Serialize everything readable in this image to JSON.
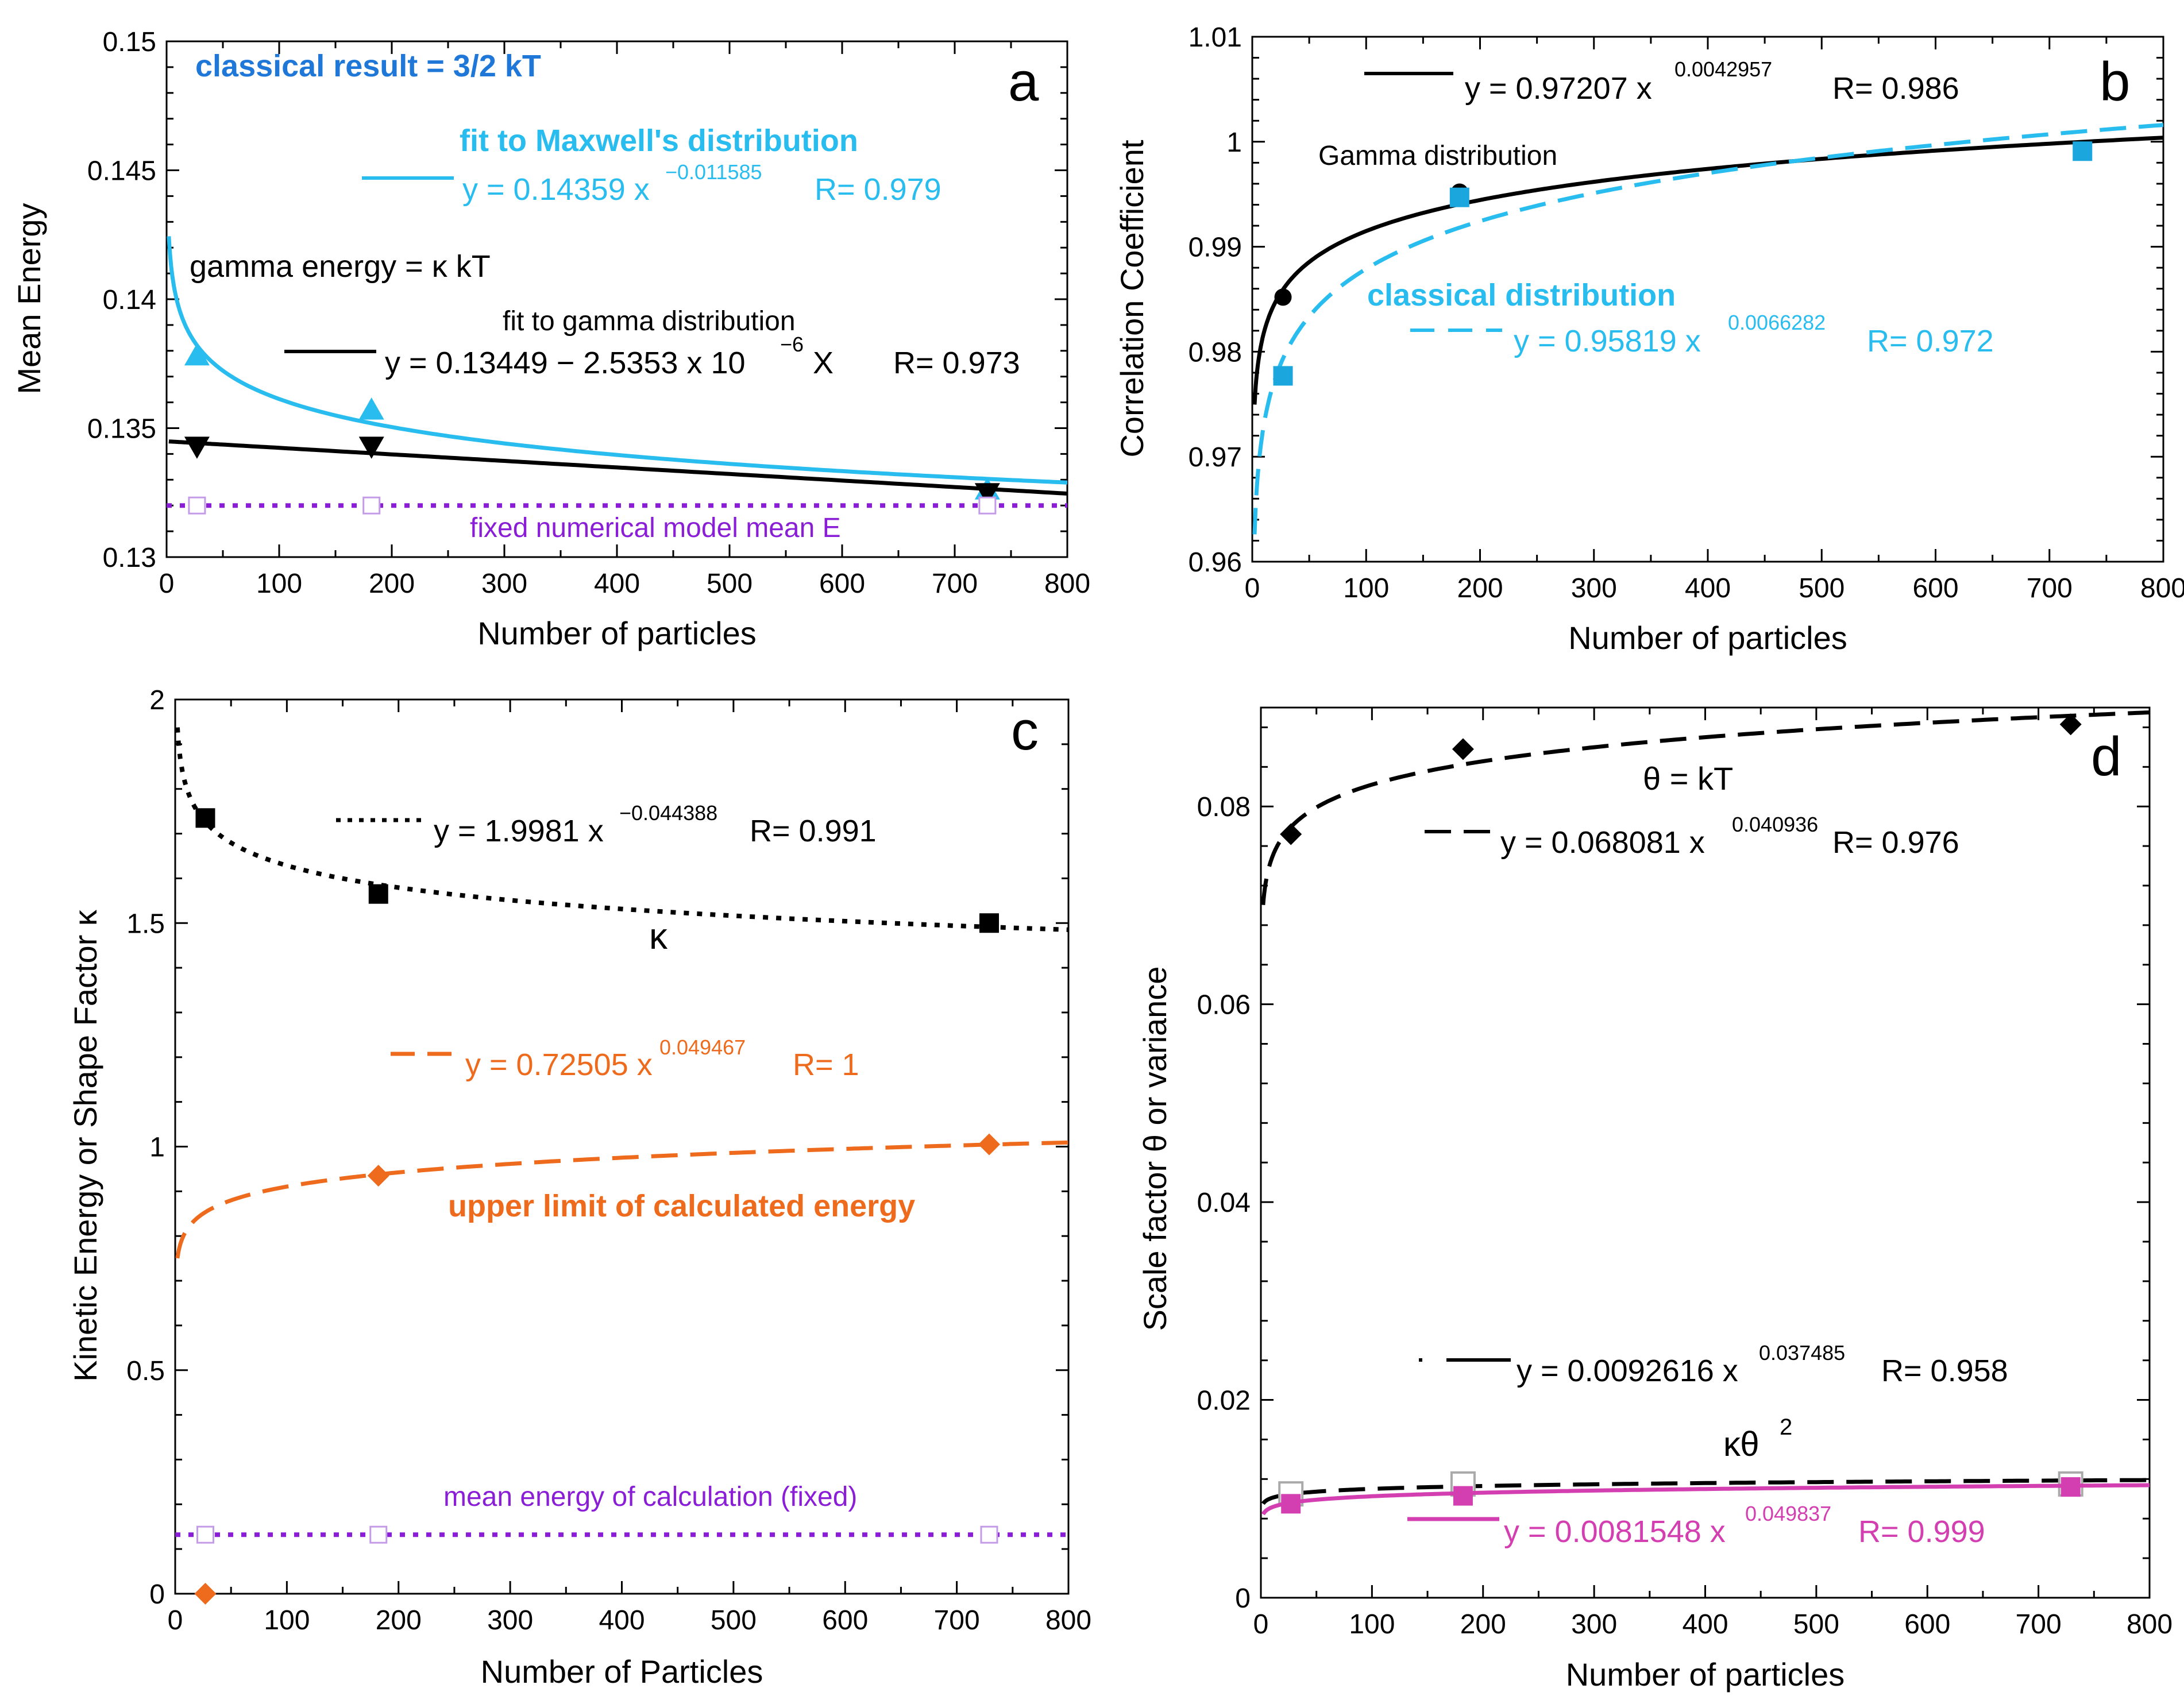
{
  "figure": "Four-panel figure of gamma-distribution fits versus number of particles",
  "colors": {
    "cyan": "#29bdef",
    "cyan_dark": "#1ba7dd",
    "classical_blue": "#1f78d8",
    "black": "#000000",
    "purple": "#8a1ed6",
    "purple_light": "#c49be6",
    "orange": "#ee6a1c",
    "magenta": "#d33fb0",
    "grey": "#aaaaaa"
  },
  "chart_data": [
    {
      "id": "a",
      "type": "scatter",
      "panel_label": "a",
      "xlabel": "Number of particles",
      "ylabel": "Mean Energy",
      "xlim": [
        0,
        800
      ],
      "ylim": [
        0.13,
        0.15
      ],
      "xticks": [
        "0",
        "100",
        "200",
        "300",
        "400",
        "500",
        "600",
        "700",
        "800"
      ],
      "yticks": [
        "0.13",
        "0.135",
        "0.14",
        "0.145",
        "0.15"
      ],
      "series": [
        {
          "name": "fit to Maxwell's distribution",
          "color": "cyan",
          "style": "solid",
          "marker": "triangle-up",
          "x": [
            27,
            182,
            729
          ],
          "y": [
            0.1378,
            0.1357,
            0.1326
          ],
          "fit": {
            "kind": "power",
            "a": 0.14359,
            "b": -0.011585
          }
        },
        {
          "name": "fit to gamma distribution",
          "color": "black",
          "style": "solid",
          "marker": "triangle-down",
          "x": [
            27,
            182,
            729
          ],
          "y": [
            0.1343,
            0.1343,
            0.1325
          ],
          "fit": {
            "kind": "linear",
            "a": 0.13449,
            "b": -2.5353e-06
          }
        },
        {
          "name": "fixed numerical model mean E",
          "color": "purple",
          "style": "dotted",
          "marker": "square-open",
          "x": [
            27,
            182,
            729
          ],
          "y": [
            0.132,
            0.132,
            0.132
          ],
          "fit": {
            "kind": "const",
            "a": 0.132
          }
        }
      ],
      "annotations": {
        "classical": "classical result = 3/2 kT",
        "maxwell_title": "fit to Maxwell's distribution",
        "maxwell_eq": "y = 0.14359 x",
        "maxwell_exp": "−0.011585",
        "maxwell_r": "R= 0.979",
        "gamma_energy": "gamma energy = κ kT",
        "gamma_title": "fit to gamma distribution",
        "gamma_eq": "y = 0.13449 − 2.5353 x 10",
        "gamma_exp": "−6",
        "gamma_x": " X",
        "gamma_r": "R= 0.973",
        "fixed": "fixed numerical model mean E"
      }
    },
    {
      "id": "b",
      "type": "scatter",
      "panel_label": "b",
      "xlabel": "Number of particles",
      "ylabel": "Correlation Coefficient",
      "xlim": [
        0,
        800
      ],
      "ylim": [
        0.96,
        1.01
      ],
      "xticks": [
        "0",
        "100",
        "200",
        "300",
        "400",
        "500",
        "600",
        "700",
        "800"
      ],
      "yticks": [
        "0.96",
        "0.97",
        "0.98",
        "0.99",
        "1",
        "1.01"
      ],
      "series": [
        {
          "name": "Gamma distribution",
          "color": "black",
          "style": "solid",
          "marker": "circle",
          "x": [
            27,
            182,
            729
          ],
          "y": [
            0.9852,
            0.9952,
            0.9991
          ],
          "fit": {
            "kind": "power",
            "a": 0.97207,
            "b": 0.0042957
          }
        },
        {
          "name": "classical distribution",
          "color": "cyan",
          "style": "dashed",
          "marker": "square",
          "x": [
            27,
            182,
            729
          ],
          "y": [
            0.9777,
            0.9947,
            0.9991
          ],
          "fit": {
            "kind": "power",
            "a": 0.95819,
            "b": 0.0066282
          }
        }
      ],
      "annotations": {
        "gamma_eq": "y = 0.97207 x",
        "gamma_exp": "0.0042957",
        "gamma_r": "R= 0.986",
        "gamma_title": "Gamma distribution",
        "classical_title": "classical distribution",
        "classical_eq": "y = 0.95819 x",
        "classical_exp": "0.0066282",
        "classical_r": "R= 0.972"
      }
    },
    {
      "id": "c",
      "type": "scatter",
      "panel_label": "c",
      "xlabel": "Number of Particles",
      "ylabel": "Kinetic Energy   or   Shape Factor κ",
      "xlim": [
        0,
        800
      ],
      "ylim": [
        0,
        2
      ],
      "xticks": [
        "0",
        "100",
        "200",
        "300",
        "400",
        "500",
        "600",
        "700",
        "800"
      ],
      "yticks": [
        "0",
        "0.5",
        "1",
        "1.5",
        "2"
      ],
      "series": [
        {
          "name": "κ",
          "color": "black",
          "style": "dotted",
          "marker": "square",
          "x": [
            27,
            182,
            729
          ],
          "y": [
            1.735,
            1.565,
            1.5
          ],
          "fit": {
            "kind": "power",
            "a": 1.9981,
            "b": -0.044388
          }
        },
        {
          "name": "upper limit of calculated energy",
          "color": "orange",
          "style": "dashed",
          "marker": "diamond",
          "x": [
            27,
            182,
            729
          ],
          "y": [
            0.0,
            0.935,
            1.005
          ],
          "fit": {
            "kind": "power",
            "a": 0.72505,
            "b": 0.049467
          }
        },
        {
          "name": "mean energy of calculation (fixed)",
          "color": "purple",
          "style": "dotted",
          "marker": "square-open",
          "x": [
            27,
            182,
            729
          ],
          "y": [
            0.132,
            0.132,
            0.132
          ],
          "fit": {
            "kind": "const",
            "a": 0.132
          }
        }
      ],
      "annotations": {
        "kappa_eq": "y = 1.9981 x",
        "kappa_exp": "−0.044388",
        "kappa_r": "R= 0.991",
        "kappa_label": "κ",
        "orange_eq": "y = 0.72505 x",
        "orange_exp": "0.049467",
        "orange_r": "R= 1",
        "orange_title": "upper limit of calculated energy",
        "mean_title": "mean energy of calculation (fixed)"
      }
    },
    {
      "id": "d",
      "type": "scatter",
      "panel_label": "d",
      "xlabel": "Number of particles",
      "ylabel": "Scale factor θ  or variance",
      "xlim": [
        0,
        800
      ],
      "ylim": [
        0,
        0.09
      ],
      "xticks": [
        "0",
        "100",
        "200",
        "300",
        "400",
        "500",
        "600",
        "700",
        "800"
      ],
      "yticks": [
        "0",
        "0.02",
        "0.04",
        "0.06",
        "0.08"
      ],
      "series": [
        {
          "name": "θ = kT",
          "color": "black",
          "style": "dashed",
          "marker": "diamond",
          "x": [
            27,
            182,
            729
          ],
          "y": [
            0.0772,
            0.0858,
            0.0883
          ],
          "fit": {
            "kind": "power",
            "a": 0.068081,
            "b": 0.040936
          }
        },
        {
          "name": "κθ²",
          "color": "black",
          "style": "dashed",
          "marker": "square-open-grey",
          "x": [
            27,
            182,
            729
          ],
          "y": [
            0.0105,
            0.0115,
            0.0115
          ],
          "fit": {
            "kind": "power",
            "a": 0.0092616,
            "b": 0.037485
          }
        },
        {
          "name": "variance",
          "color": "magenta",
          "style": "solid",
          "marker": "square",
          "x": [
            27,
            182,
            729
          ],
          "y": [
            0.0095,
            0.0103,
            0.0112
          ],
          "fit": {
            "kind": "power",
            "a": 0.0081548,
            "b": 0.049837
          }
        }
      ],
      "annotations": {
        "theta_title": "θ = kT",
        "theta_eq": "y = 0.068081 x",
        "theta_exp": "0.040936",
        "theta_r": "R= 0.976",
        "var_eq": "y = 0.0092616 x",
        "var_exp": "0.037485",
        "var_r": "R= 0.958",
        "var_label": "κθ",
        "var_label_exp": "2",
        "mag_eq": "y = 0.0081548 x",
        "mag_exp": "0.049837",
        "mag_r": "R= 0.999"
      }
    }
  ]
}
